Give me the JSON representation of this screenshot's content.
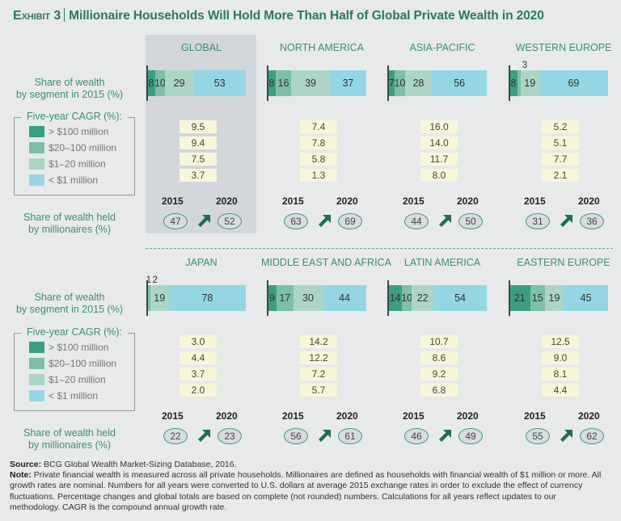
{
  "title": {
    "exhibit": "Exhibit 3",
    "text": "Millionaire Households Will Hold More Than Half of Global Private Wealth in 2020"
  },
  "labels": {
    "share_by_segment": [
      "Share of wealth",
      "by segment in 2015 (%)"
    ],
    "share_millionaires": [
      "Share of wealth held",
      "by millionaires (%)"
    ],
    "year_from": "2015",
    "year_to": "2020"
  },
  "legend": {
    "title": "Five-year CAGR (%):",
    "items": [
      {
        "label": "> $100 million",
        "color": "#3a9f82"
      },
      {
        "label": "$20–100 million",
        "color": "#7dbfa9"
      },
      {
        "label": "$1–20 million",
        "color": "#add5c6"
      },
      {
        "label": "< $1 million",
        "color": "#94d6e4"
      }
    ]
  },
  "colors": {
    "accent": "#2a7a5a",
    "highlight_bg": "#d3d7db",
    "cagr_bg": "#f7f6d9"
  },
  "chart_data": {
    "type": "bar",
    "title": "Millionaire Households Will Hold More Than Half of Global Private Wealth in 2020",
    "segments": [
      "> $100 million",
      "$20–100 million",
      "$1–20 million",
      "< $1 million"
    ],
    "regions": [
      {
        "name": "GLOBAL",
        "share_2015": [
          8,
          10,
          29,
          53
        ],
        "cagr": [
          "9.5",
          "9.4",
          "7.5",
          "3.7"
        ],
        "millionaires_2015": 47,
        "millionaires_2020": 52,
        "highlight": true
      },
      {
        "name": "NORTH AMERICA",
        "share_2015": [
          8,
          16,
          39,
          37
        ],
        "cagr": [
          "7.4",
          "7.8",
          "5.8",
          "1.3"
        ],
        "millionaires_2015": 63,
        "millionaires_2020": 69
      },
      {
        "name": "ASIA-PACIFIC",
        "share_2015": [
          7,
          10,
          28,
          56
        ],
        "cagr": [
          "16.0",
          "14.0",
          "11.7",
          "8.0"
        ],
        "millionaires_2015": 44,
        "millionaires_2020": 50
      },
      {
        "name": "WESTERN EUROPE",
        "share_2015": [
          8,
          3,
          19,
          69
        ],
        "cagr": [
          "5.2",
          "5.1",
          "7.7",
          "2.1"
        ],
        "millionaires_2015": 31,
        "millionaires_2020": 36,
        "callouts": [
          "3"
        ]
      },
      {
        "name": "JAPAN",
        "share_2015": [
          1,
          2,
          19,
          78
        ],
        "cagr": [
          "3.0",
          "4.4",
          "3.7",
          "2.0"
        ],
        "millionaires_2015": 22,
        "millionaires_2020": 23,
        "callouts": [
          "1",
          "2"
        ]
      },
      {
        "name": "MIDDLE EAST AND AFRICA",
        "share_2015": [
          9,
          17,
          30,
          44
        ],
        "cagr": [
          "14.2",
          "12.2",
          "7.2",
          "5.7"
        ],
        "millionaires_2015": 56,
        "millionaires_2020": 61
      },
      {
        "name": "LATIN AMERICA",
        "share_2015": [
          14,
          10,
          22,
          54
        ],
        "cagr": [
          "10.7",
          "8.6",
          "9.2",
          "6.8"
        ],
        "millionaires_2015": 46,
        "millionaires_2020": 49
      },
      {
        "name": "EASTERN EUROPE",
        "share_2015": [
          21,
          15,
          19,
          45
        ],
        "cagr": [
          "12.5",
          "9.0",
          "8.1",
          "4.4"
        ],
        "millionaires_2015": 55,
        "millionaires_2020": 62
      }
    ]
  },
  "footer": {
    "source_label": "Source:",
    "source_text": " BCG Global Wealth Market-Sizing Database, 2016.",
    "note_label": "Note:",
    "note_text": " Private financial wealth is measured across all private households. Millionaires are defined as households with financial wealth of $1 million or more. All growth rates are nominal. Numbers for all years were converted to U.S. dollars at average 2015 exchange rates in order to exclude the effect of currency fluctuations. Percentage changes and global totals are based on complete (not rounded) numbers. Calculations for all years reflect updates to our methodology. CAGR is the compound annual growth rate."
  }
}
